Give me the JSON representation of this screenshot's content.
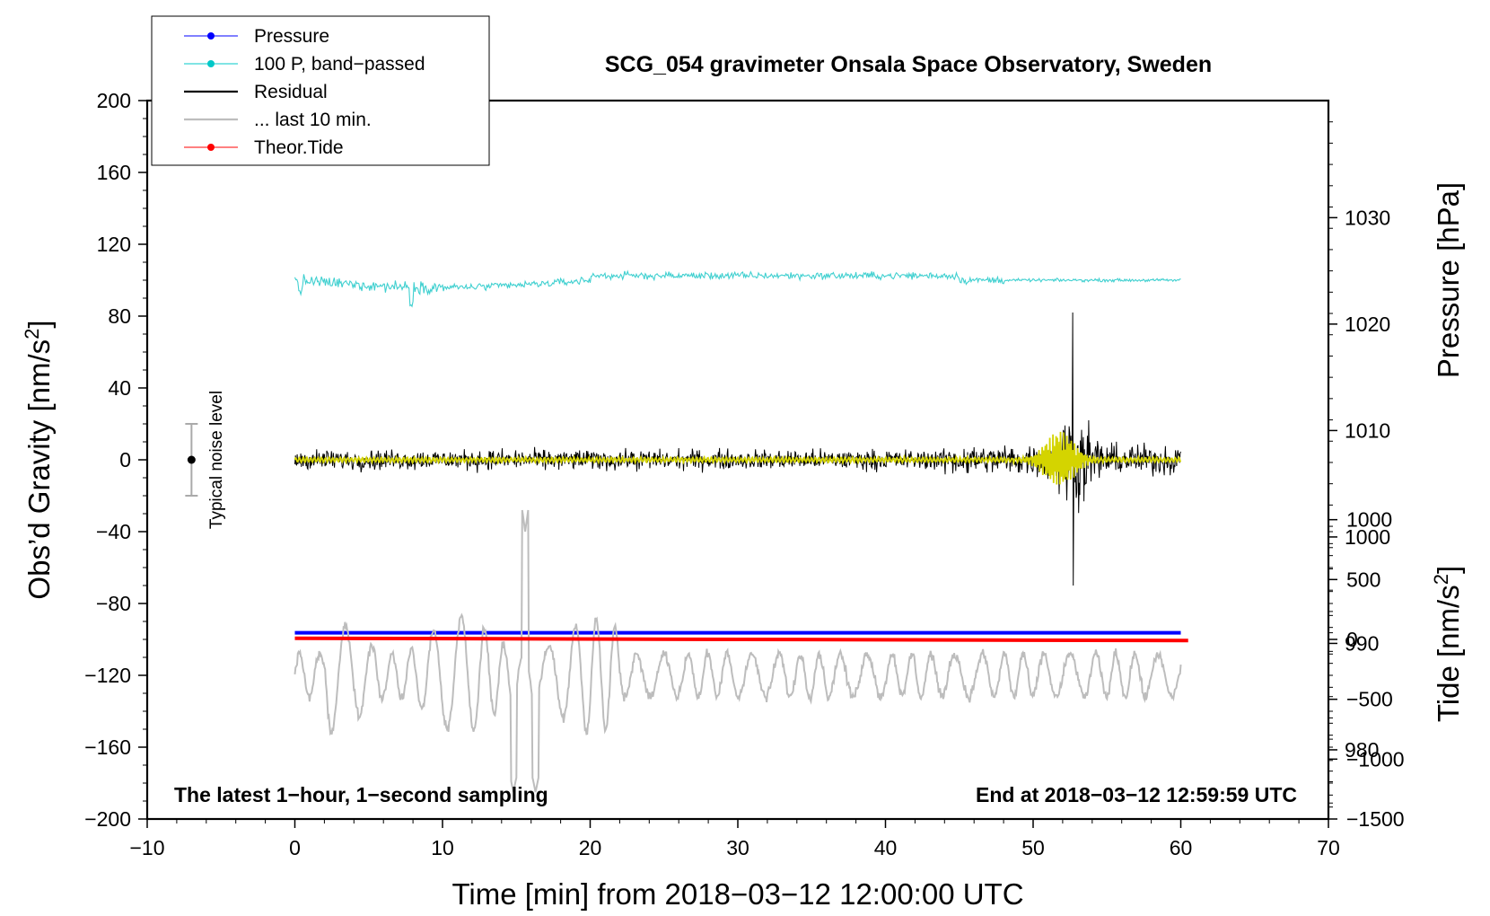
{
  "chart_data": {
    "type": "line",
    "title": "SCG_054 gravimeter Onsala Space Observatory, Sweden",
    "xlabel": "Time [min] from 2018−03−12 12:00:00 UTC",
    "ylabel_left": "Obs’d Gravity [nm/s²]",
    "ylabel_left_main": "Obs’d Gravity [nm/s",
    "ylabel_left_sup": "2",
    "ylabel_left_end": "]",
    "ylabel_right_pressure": "Pressure [hPa]",
    "ylabel_right_tide": "Tide [nm/s²]",
    "ylabel_right_tide_main": "Tide [nm/s",
    "ylabel_right_tide_sup": "2",
    "ylabel_right_tide_end": "]",
    "xlim": [
      -10,
      70
    ],
    "ylim": [
      -200,
      200
    ],
    "x_ticks": [
      -10,
      0,
      10,
      20,
      30,
      40,
      50,
      60,
      70
    ],
    "x_tick_labels": [
      "−10",
      "0",
      "10",
      "20",
      "30",
      "40",
      "50",
      "60",
      "70"
    ],
    "y_ticks": [
      -200,
      -160,
      -120,
      -80,
      -40,
      0,
      40,
      80,
      120,
      160,
      200
    ],
    "y_tick_labels": [
      "−200",
      "−160",
      "−120",
      "−80",
      "−40",
      "0",
      "40",
      "80",
      "120",
      "160",
      "200"
    ],
    "pressure_axis": {
      "ticks": [
        980,
        990,
        1000,
        1010,
        1020,
        1030
      ],
      "tick_labels": [
        "980",
        "990",
        "1000",
        "1010",
        "1020",
        "1030"
      ],
      "range": [
        973.5,
        1041.0
      ]
    },
    "tide_axis": {
      "ticks": [
        -1500,
        -1000,
        -500,
        0,
        500,
        1000
      ],
      "tick_labels": [
        "−1500",
        "−1000",
        "−500",
        "0",
        "500",
        "1000"
      ],
      "range": [
        -1500,
        1000
      ]
    },
    "legend": [
      {
        "label": "Pressure",
        "color": "#0000ff",
        "marker": true
      },
      {
        "label": "100 P, band−passed",
        "color": "#00c8c8",
        "marker": true
      },
      {
        "label": "Residual",
        "color": "#000000",
        "marker": false
      },
      {
        "label": "... last 10 min.",
        "color": "#bdbdbd",
        "marker": false
      },
      {
        "label": "Theor.Tide",
        "color": "#ff0000",
        "marker": true
      }
    ],
    "series": [
      {
        "name": "Pressure",
        "color": "#0000ff",
        "x_range": [
          0,
          60
        ],
        "start": 991.0,
        "end": 991.0,
        "unit": "hPa"
      },
      {
        "name": "100 P, band−passed",
        "color": "#40d0d0",
        "x_range": [
          0,
          60
        ],
        "baseline_nm_s2": 100,
        "amplitude_nm_s2": 3
      },
      {
        "name": "Residual",
        "color": "#000000",
        "x_range": [
          0,
          60
        ],
        "baseline_nm_s2": 0,
        "noise_amplitude_nm_s2": 8,
        "event_peak_time_min": 52.7,
        "event_max_nm_s2": 82,
        "event_min_nm_s2": -70
      },
      {
        "name": "Residual (filtered)",
        "color": "#d4d400",
        "x_range": [
          0,
          60
        ],
        "baseline_nm_s2": 0,
        "event_amplitude_nm_s2": 15
      },
      {
        "name": "... last 10 min.",
        "color": "#bdbdbd",
        "x_range": [
          0,
          60
        ],
        "baseline_nm_s2": -120,
        "max_nm_s2": -40,
        "min_nm_s2": -185
      },
      {
        "name": "Theor.Tide",
        "color": "#ff0000",
        "x_range": [
          0,
          60.5
        ],
        "start": 10,
        "end": -10,
        "unit": "nm/s²"
      }
    ],
    "noise_bar": {
      "label": "Typical noise level",
      "x": -7,
      "center": 0,
      "low": -20,
      "high": 20
    },
    "annotations": {
      "bottom_left": "The latest 1−hour, 1−second sampling",
      "bottom_right": "End at 2018−03−12 12:59:59 UTC"
    }
  }
}
